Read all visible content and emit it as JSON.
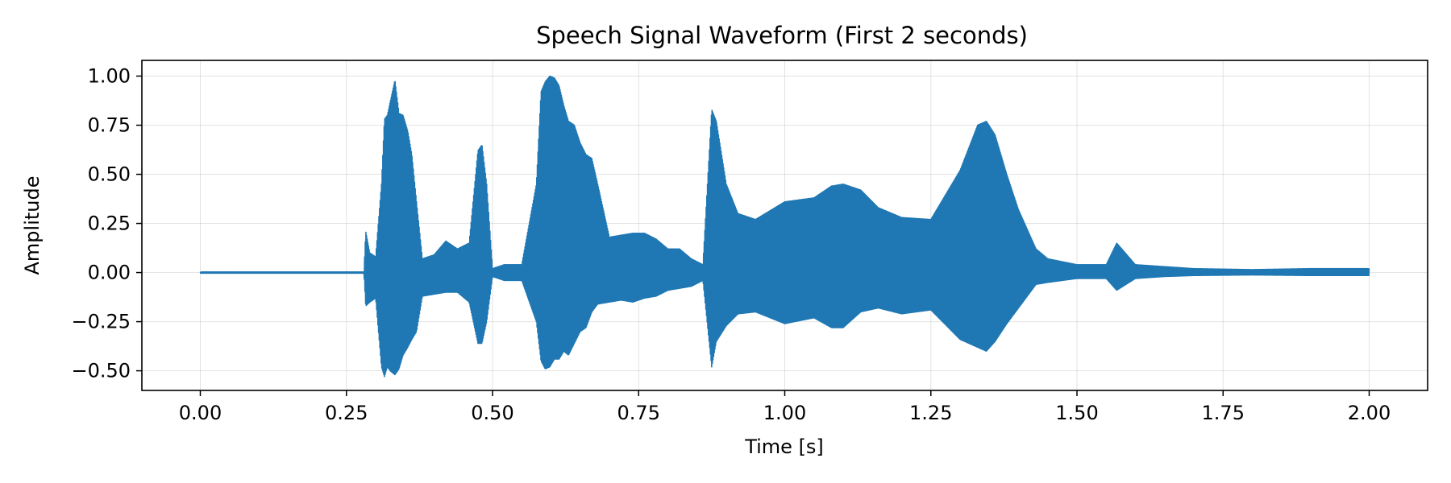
{
  "chart_data": {
    "type": "line",
    "title": "Speech Signal Waveform (First 2 seconds)",
    "xlabel": "Time [s]",
    "ylabel": "Amplitude",
    "xlim": [
      -0.1,
      2.1
    ],
    "ylim": [
      -0.6,
      1.08
    ],
    "xticks": [
      0.0,
      0.25,
      0.5,
      0.75,
      1.0,
      1.25,
      1.5,
      1.75,
      2.0
    ],
    "xtick_labels": [
      "0.00",
      "0.25",
      "0.50",
      "0.75",
      "1.00",
      "1.25",
      "1.50",
      "1.75",
      "2.00"
    ],
    "yticks": [
      -0.5,
      -0.25,
      0.0,
      0.25,
      0.5,
      0.75,
      1.0
    ],
    "ytick_labels": [
      "−0.50",
      "−0.25",
      "0.00",
      "0.25",
      "0.50",
      "0.75",
      "1.00"
    ],
    "grid": true,
    "line_color": "#1f77b4",
    "series": [
      {
        "x": [
          0.0,
          0.1,
          0.2,
          0.28,
          0.283,
          0.29,
          0.3,
          0.31,
          0.315,
          0.32,
          0.325,
          0.333,
          0.34,
          0.347,
          0.355,
          0.362,
          0.37,
          0.38,
          0.4,
          0.42,
          0.44,
          0.46,
          0.475,
          0.482,
          0.49,
          0.5,
          0.52,
          0.55,
          0.575,
          0.583,
          0.59,
          0.598,
          0.606,
          0.614,
          0.622,
          0.63,
          0.64,
          0.65,
          0.66,
          0.67,
          0.68,
          0.7,
          0.72,
          0.74,
          0.76,
          0.78,
          0.8,
          0.82,
          0.84,
          0.86,
          0.875,
          0.883,
          0.9,
          0.92,
          0.95,
          1.0,
          1.05,
          1.08,
          1.1,
          1.13,
          1.16,
          1.2,
          1.25,
          1.3,
          1.33,
          1.345,
          1.36,
          1.38,
          1.4,
          1.43,
          1.45,
          1.5,
          1.55,
          1.568,
          1.6,
          1.65,
          1.7,
          1.8,
          1.9,
          2.0
        ],
        "envelope_max": [
          0.003,
          0.003,
          0.003,
          0.003,
          0.21,
          0.1,
          0.08,
          0.45,
          0.78,
          0.8,
          0.87,
          0.98,
          0.81,
          0.8,
          0.72,
          0.6,
          0.36,
          0.07,
          0.09,
          0.16,
          0.12,
          0.15,
          0.62,
          0.65,
          0.45,
          0.02,
          0.04,
          0.04,
          0.45,
          0.92,
          0.97,
          1.0,
          0.99,
          0.95,
          0.85,
          0.77,
          0.75,
          0.66,
          0.6,
          0.58,
          0.45,
          0.18,
          0.19,
          0.2,
          0.2,
          0.17,
          0.12,
          0.12,
          0.07,
          0.04,
          0.83,
          0.77,
          0.45,
          0.3,
          0.27,
          0.36,
          0.38,
          0.44,
          0.45,
          0.42,
          0.33,
          0.28,
          0.27,
          0.52,
          0.75,
          0.77,
          0.7,
          0.5,
          0.32,
          0.12,
          0.07,
          0.04,
          0.04,
          0.15,
          0.04,
          0.03,
          0.02,
          0.015,
          0.02,
          0.02
        ],
        "envelope_min": [
          -0.003,
          -0.003,
          -0.003,
          -0.003,
          -0.17,
          -0.15,
          -0.13,
          -0.48,
          -0.53,
          -0.48,
          -0.5,
          -0.52,
          -0.49,
          -0.42,
          -0.38,
          -0.34,
          -0.3,
          -0.12,
          -0.11,
          -0.1,
          -0.1,
          -0.15,
          -0.36,
          -0.36,
          -0.25,
          -0.02,
          -0.04,
          -0.04,
          -0.25,
          -0.45,
          -0.49,
          -0.48,
          -0.44,
          -0.44,
          -0.4,
          -0.42,
          -0.36,
          -0.3,
          -0.28,
          -0.2,
          -0.16,
          -0.15,
          -0.14,
          -0.15,
          -0.13,
          -0.12,
          -0.09,
          -0.08,
          -0.07,
          -0.04,
          -0.48,
          -0.35,
          -0.27,
          -0.21,
          -0.2,
          -0.26,
          -0.23,
          -0.28,
          -0.28,
          -0.2,
          -0.18,
          -0.21,
          -0.19,
          -0.34,
          -0.38,
          -0.4,
          -0.35,
          -0.26,
          -0.18,
          -0.06,
          -0.05,
          -0.03,
          -0.03,
          -0.09,
          -0.03,
          -0.02,
          -0.015,
          -0.012,
          -0.015,
          -0.015
        ]
      }
    ]
  }
}
